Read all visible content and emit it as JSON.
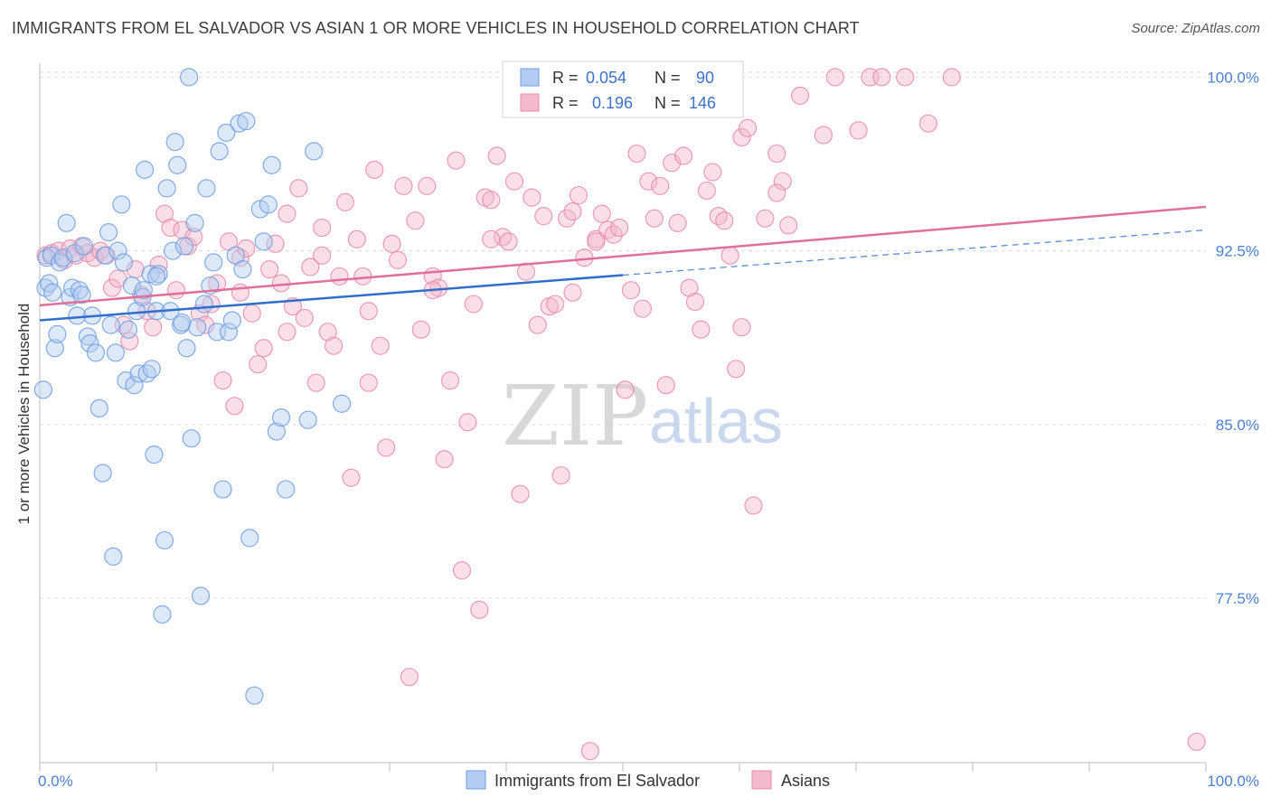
{
  "title": "IMMIGRANTS FROM EL SALVADOR VS ASIAN 1 OR MORE VEHICLES IN HOUSEHOLD CORRELATION CHART",
  "source": "Source: ZipAtlas.com",
  "watermark": {
    "zip": "ZIP",
    "atlas": "atlas"
  },
  "colors": {
    "blue": "#6d9fe0",
    "blue_fill": "#b3cdf2",
    "blue_line": "#2f6fcb",
    "pink": "#e98aab",
    "pink_fill": "#f4b9cc",
    "pink_line": "#e0709a",
    "axis_text": "#4a7fd4",
    "grid": "#dcdcdc"
  },
  "chart_data": {
    "type": "scatter",
    "xlabel": "",
    "ylabel": "1 or more Vehicles in Household",
    "xlim": [
      0,
      100
    ],
    "ylim": [
      70.4,
      100.6
    ],
    "x_tick_labels": [
      "0.0%",
      "100.0%"
    ],
    "y_ticks": [
      77.5,
      85.0,
      92.5,
      100.0
    ],
    "y_tick_labels": [
      "77.5%",
      "85.0%",
      "92.5%",
      "100.0%"
    ],
    "legend_top": [
      {
        "series": "Immigrants from El Salvador",
        "r_label": "R =",
        "r_value": "0.054",
        "n_label": "N =",
        "n_value": "90"
      },
      {
        "series": "Asians",
        "r_label": "R =",
        "r_value": "0.196",
        "n_label": "N =",
        "n_value": "146"
      }
    ],
    "legend_bottom": [
      "Immigrants from El Salvador",
      "Asians"
    ],
    "series": [
      {
        "name": "Immigrants from El Salvador",
        "color": "#6d9fe0",
        "trend": {
          "x0": 0,
          "y0": 89.5,
          "x1": 50,
          "y1": 91.45,
          "dash_to_x": 100,
          "dash_to_y": 93.4
        },
        "points": [
          [
            0.3,
            86.5
          ],
          [
            0.5,
            90.9
          ],
          [
            0.6,
            92.2
          ],
          [
            0.8,
            91.1
          ],
          [
            1.0,
            92.3
          ],
          [
            1.1,
            90.7
          ],
          [
            1.3,
            88.3
          ],
          [
            1.5,
            88.9
          ],
          [
            1.7,
            92.0
          ],
          [
            2.0,
            92.2
          ],
          [
            2.3,
            93.7
          ],
          [
            2.6,
            90.5
          ],
          [
            2.8,
            90.9
          ],
          [
            3.0,
            92.4
          ],
          [
            3.2,
            89.7
          ],
          [
            3.4,
            90.8
          ],
          [
            3.6,
            90.6
          ],
          [
            3.8,
            92.7
          ],
          [
            4.1,
            88.8
          ],
          [
            4.3,
            88.5
          ],
          [
            4.5,
            89.7
          ],
          [
            4.8,
            88.1
          ],
          [
            5.1,
            85.7
          ],
          [
            5.4,
            82.9
          ],
          [
            5.6,
            92.3
          ],
          [
            5.9,
            93.3
          ],
          [
            6.1,
            89.3
          ],
          [
            6.3,
            79.3
          ],
          [
            6.5,
            88.1
          ],
          [
            6.7,
            92.5
          ],
          [
            7.0,
            94.5
          ],
          [
            7.2,
            92.0
          ],
          [
            7.4,
            86.9
          ],
          [
            7.6,
            89.1
          ],
          [
            7.9,
            91.0
          ],
          [
            8.1,
            86.7
          ],
          [
            8.3,
            89.9
          ],
          [
            8.5,
            87.2
          ],
          [
            8.8,
            90.5
          ],
          [
            9.0,
            96.0
          ],
          [
            9.2,
            87.2
          ],
          [
            9.5,
            91.5
          ],
          [
            9.8,
            83.7
          ],
          [
            10.0,
            89.9
          ],
          [
            10.2,
            91.5
          ],
          [
            10.5,
            76.8
          ],
          [
            10.7,
            80.0
          ],
          [
            10.9,
            95.2
          ],
          [
            11.2,
            89.9
          ],
          [
            11.4,
            92.5
          ],
          [
            11.6,
            97.2
          ],
          [
            11.8,
            96.2
          ],
          [
            12.1,
            89.3
          ],
          [
            12.4,
            92.7
          ],
          [
            12.6,
            88.3
          ],
          [
            12.8,
            100.0
          ],
          [
            13.0,
            84.4
          ],
          [
            13.3,
            93.7
          ],
          [
            13.5,
            89.2
          ],
          [
            13.8,
            77.6
          ],
          [
            14.1,
            90.2
          ],
          [
            14.3,
            95.2
          ],
          [
            14.6,
            91.0
          ],
          [
            14.9,
            92.0
          ],
          [
            15.2,
            89.0
          ],
          [
            15.4,
            96.8
          ],
          [
            15.7,
            82.2
          ],
          [
            16.0,
            97.6
          ],
          [
            16.2,
            89.0
          ],
          [
            16.5,
            89.5
          ],
          [
            16.8,
            92.3
          ],
          [
            17.1,
            98.0
          ],
          [
            17.4,
            91.7
          ],
          [
            17.7,
            98.1
          ],
          [
            18.0,
            80.1
          ],
          [
            18.4,
            73.3
          ],
          [
            18.9,
            94.3
          ],
          [
            19.2,
            92.9
          ],
          [
            19.6,
            94.5
          ],
          [
            19.9,
            96.2
          ],
          [
            20.3,
            84.7
          ],
          [
            20.7,
            85.3
          ],
          [
            21.1,
            82.2
          ],
          [
            23.0,
            85.2
          ],
          [
            23.5,
            96.8
          ],
          [
            25.9,
            85.9
          ],
          [
            12.2,
            89.4
          ],
          [
            9.6,
            87.4
          ],
          [
            8.9,
            90.8
          ],
          [
            10.0,
            91.4
          ]
        ]
      },
      {
        "name": "Asians",
        "color": "#e98aab",
        "trend": {
          "x0": 0,
          "y0": 90.15,
          "x1": 100,
          "y1": 94.4
        },
        "points": [
          [
            0.5,
            92.3
          ],
          [
            1.0,
            92.4
          ],
          [
            1.6,
            92.5
          ],
          [
            2.1,
            92.1
          ],
          [
            2.6,
            92.6
          ],
          [
            3.1,
            92.3
          ],
          [
            3.6,
            92.7
          ],
          [
            4.1,
            92.4
          ],
          [
            4.7,
            92.2
          ],
          [
            5.2,
            92.5
          ],
          [
            5.7,
            92.3
          ],
          [
            6.2,
            90.9
          ],
          [
            6.7,
            91.3
          ],
          [
            7.2,
            89.3
          ],
          [
            7.7,
            88.6
          ],
          [
            8.2,
            91.7
          ],
          [
            8.7,
            90.6
          ],
          [
            9.2,
            89.9
          ],
          [
            9.7,
            89.2
          ],
          [
            10.2,
            91.9
          ],
          [
            10.7,
            94.1
          ],
          [
            11.2,
            93.5
          ],
          [
            11.7,
            90.8
          ],
          [
            12.2,
            93.4
          ],
          [
            12.7,
            92.7
          ],
          [
            13.2,
            93.1
          ],
          [
            13.7,
            89.8
          ],
          [
            14.2,
            89.3
          ],
          [
            14.7,
            90.2
          ],
          [
            15.2,
            91.1
          ],
          [
            15.7,
            86.9
          ],
          [
            16.2,
            92.9
          ],
          [
            16.7,
            85.8
          ],
          [
            17.2,
            92.2
          ],
          [
            17.7,
            92.6
          ],
          [
            18.2,
            89.8
          ],
          [
            18.7,
            87.6
          ],
          [
            19.2,
            88.3
          ],
          [
            19.7,
            91.7
          ],
          [
            20.2,
            92.8
          ],
          [
            20.7,
            91.1
          ],
          [
            21.2,
            94.1
          ],
          [
            21.7,
            90.1
          ],
          [
            22.2,
            95.2
          ],
          [
            22.7,
            89.6
          ],
          [
            23.2,
            91.8
          ],
          [
            23.7,
            86.8
          ],
          [
            24.2,
            92.3
          ],
          [
            24.7,
            89.0
          ],
          [
            25.2,
            88.4
          ],
          [
            25.7,
            91.4
          ],
          [
            26.2,
            94.6
          ],
          [
            26.7,
            82.7
          ],
          [
            27.2,
            93.0
          ],
          [
            27.7,
            91.4
          ],
          [
            28.2,
            86.8
          ],
          [
            28.7,
            96.0
          ],
          [
            29.2,
            88.4
          ],
          [
            29.7,
            84.0
          ],
          [
            30.2,
            92.8
          ],
          [
            30.7,
            92.1
          ],
          [
            31.2,
            95.3
          ],
          [
            31.7,
            74.1
          ],
          [
            32.2,
            93.8
          ],
          [
            32.7,
            89.1
          ],
          [
            33.2,
            95.3
          ],
          [
            33.7,
            91.4
          ],
          [
            34.2,
            90.9
          ],
          [
            34.7,
            83.5
          ],
          [
            35.2,
            86.9
          ],
          [
            35.7,
            96.4
          ],
          [
            36.2,
            78.7
          ],
          [
            36.7,
            85.1
          ],
          [
            37.2,
            90.2
          ],
          [
            37.7,
            77.0
          ],
          [
            38.2,
            94.8
          ],
          [
            38.7,
            94.7
          ],
          [
            39.2,
            96.6
          ],
          [
            39.7,
            93.1
          ],
          [
            40.2,
            92.9
          ],
          [
            40.7,
            95.5
          ],
          [
            41.2,
            82.0
          ],
          [
            41.7,
            91.6
          ],
          [
            42.2,
            94.8
          ],
          [
            42.7,
            89.3
          ],
          [
            43.2,
            94.0
          ],
          [
            43.7,
            90.1
          ],
          [
            44.2,
            90.2
          ],
          [
            44.7,
            82.8
          ],
          [
            45.2,
            93.9
          ],
          [
            45.7,
            90.7
          ],
          [
            46.2,
            94.9
          ],
          [
            46.7,
            92.2
          ],
          [
            47.2,
            70.9
          ],
          [
            47.7,
            93.0
          ],
          [
            48.2,
            94.1
          ],
          [
            48.7,
            93.4
          ],
          [
            49.2,
            93.2
          ],
          [
            49.7,
            93.5
          ],
          [
            50.2,
            86.5
          ],
          [
            50.7,
            90.8
          ],
          [
            51.2,
            96.7
          ],
          [
            51.7,
            90.0
          ],
          [
            52.2,
            95.5
          ],
          [
            52.7,
            93.9
          ],
          [
            53.2,
            95.3
          ],
          [
            53.7,
            86.7
          ],
          [
            54.2,
            96.3
          ],
          [
            54.7,
            93.7
          ],
          [
            55.2,
            96.6
          ],
          [
            55.7,
            90.9
          ],
          [
            56.2,
            90.3
          ],
          [
            56.7,
            89.1
          ],
          [
            57.2,
            95.1
          ],
          [
            57.7,
            95.9
          ],
          [
            58.2,
            94.0
          ],
          [
            58.7,
            93.8
          ],
          [
            59.2,
            92.3
          ],
          [
            59.7,
            87.4
          ],
          [
            60.2,
            97.4
          ],
          [
            60.7,
            97.8
          ],
          [
            61.2,
            81.5
          ],
          [
            62.2,
            93.9
          ],
          [
            63.2,
            96.7
          ],
          [
            63.7,
            95.5
          ],
          [
            64.2,
            93.6
          ],
          [
            65.2,
            99.2
          ],
          [
            67.2,
            97.5
          ],
          [
            68.2,
            100.0
          ],
          [
            70.2,
            97.7
          ],
          [
            71.2,
            100.0
          ],
          [
            72.2,
            100.0
          ],
          [
            74.2,
            100.0
          ],
          [
            76.2,
            98.0
          ],
          [
            78.2,
            100.0
          ],
          [
            99.2,
            71.3
          ],
          [
            45.7,
            94.2
          ],
          [
            47.7,
            92.9
          ],
          [
            60.2,
            89.2
          ],
          [
            33.7,
            90.8
          ],
          [
            28.2,
            89.9
          ],
          [
            38.7,
            93.0
          ],
          [
            63.2,
            95.0
          ],
          [
            24.2,
            93.5
          ],
          [
            17.2,
            90.7
          ],
          [
            21.2,
            89.0
          ]
        ]
      }
    ]
  }
}
